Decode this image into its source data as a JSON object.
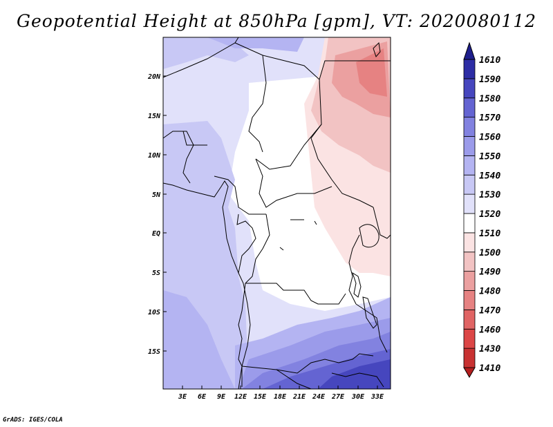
{
  "title": "Geopotential Height at 850hPa [gpm], VT: 2020080112",
  "credit": "GrADS: IGES/COLA",
  "map": {
    "lat_labels": [
      "20N",
      "15N",
      "10N",
      "5N",
      "EQ",
      "5S",
      "10S",
      "15S"
    ],
    "lon_labels": [
      "3E",
      "6E",
      "9E",
      "12E",
      "15E",
      "18E",
      "21E",
      "24E",
      "27E",
      "30E",
      "33E"
    ]
  },
  "colorbar": {
    "levels": [
      "1410",
      "1430",
      "1460",
      "1470",
      "1480",
      "1490",
      "1500",
      "1510",
      "1520",
      "1530",
      "1540",
      "1550",
      "1560",
      "1570",
      "1580",
      "1590",
      "1610"
    ],
    "colors": [
      "#b41e1e",
      "#c83232",
      "#dc4646",
      "#e06464",
      "#e68282",
      "#eba0a0",
      "#f2c3c3",
      "#fbe3e3",
      "#ffffff",
      "#e1e1fa",
      "#c8c8f5",
      "#b4b4f2",
      "#9b9bea",
      "#8282e0",
      "#6464d2",
      "#4646be",
      "#2d2da5",
      "#1e1e8c"
    ],
    "colors_bottom_first": true
  }
}
